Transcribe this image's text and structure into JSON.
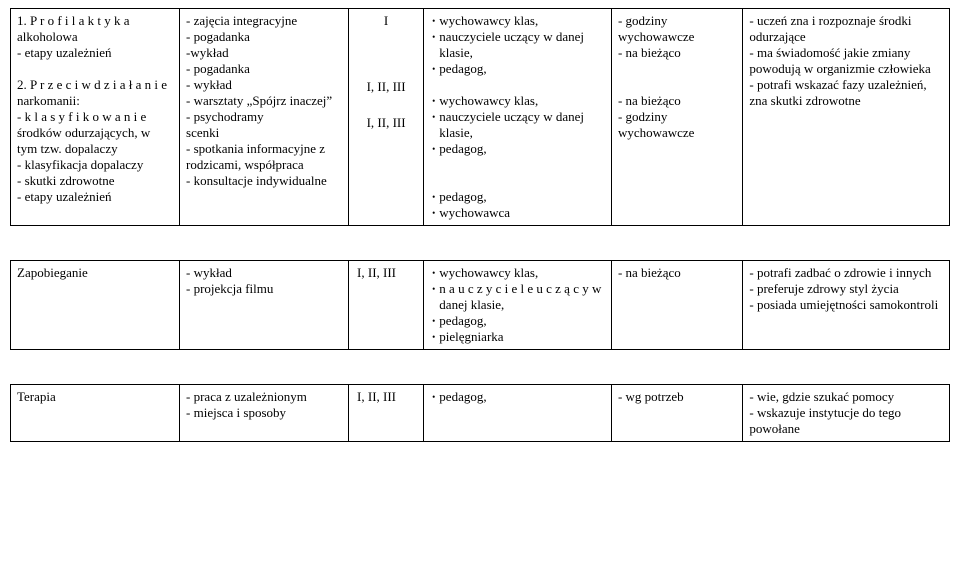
{
  "row1": {
    "topic": "1. P r o f i l a k t y k a alkoholowa\n- etapy uzależnień\n\n2. P r z e c i w d z i a ł a n i e narkomanii:\n- k l a s y f i k o w a n i e środków odurzających, w tym tzw. dopalaczy\n- klasyfikacja dopalaczy\n- skutki zdrowotne\n- etapy uzależnień",
    "methods": "- zajęcia integracyjne\n- pogadanka\n-wykład\n- pogadanka\n- wykład\n- warsztaty „Spójrz inaczej”\n- psychodramy\nscenki\n- spotkania informacyjne z rodzicami, współpraca\n- konsultacje indywidualne",
    "levels": [
      "I",
      "I, II, III",
      "I, II, III"
    ],
    "people": [
      "wychowawcy klas,",
      "nauczyciele uczący w danej klasie,",
      "pedagog,",
      "",
      "wychowawcy klas,",
      "nauczyciele uczący w danej klasie,",
      "pedagog,",
      "",
      "",
      "pedagog,",
      "wychowawca"
    ],
    "time": "- godziny wychowawcze\n- na bieżąco\n\n\n- na bieżąco\n- godziny wychowawcze",
    "outcome": "- uczeń zna i rozpoznaje środki odurzające\n- ma świadomość jakie zmiany powodują w organizmie człowieka\n- potrafi wskazać fazy uzależnień, zna skutki zdrowotne"
  },
  "row2": {
    "topic": "Zapobieganie",
    "methods": "- wykład\n- projekcja filmu",
    "level": "I, II, III",
    "people": [
      "wychowawcy klas,",
      "n a u c z y c i e l e  u c z ą c y  w danej klasie,",
      "pedagog,",
      "pielęgniarka"
    ],
    "time": "- na bieżąco",
    "outcome": "- potrafi zadbać o  zdrowie i innych\n- preferuje zdrowy styl życia\n- posiada umiejętności samokontroli"
  },
  "row3": {
    "topic": "Terapia",
    "methods": "- praca z uzależnionym\n- miejsca i sposoby",
    "level": "I, II, III",
    "people": [
      "pedagog,"
    ],
    "time": "- wg potrzeb",
    "outcome": "- wie, gdzie szukać pomocy\n- wskazuje instytucje do tego powołane"
  }
}
